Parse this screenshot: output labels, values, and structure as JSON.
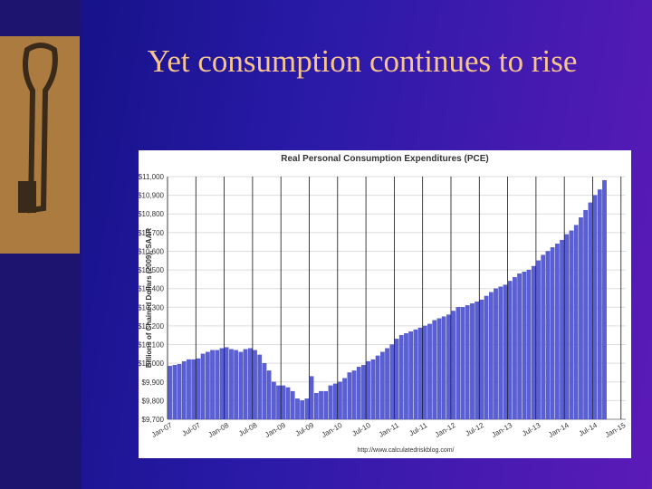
{
  "slide_title": "Yet consumption continues to rise",
  "chart_data": {
    "type": "bar",
    "title": "Real Personal Consumption Expenditures (PCE)",
    "y_label": "Billions of Chained Dollars (2009), SAAR",
    "source": "http://www.calculatedriskblog.com/",
    "color": "#5a5fd6",
    "categories": [
      "Jan-07",
      null,
      null,
      null,
      null,
      null,
      "Jul-07",
      null,
      null,
      null,
      null,
      null,
      "Jan-08",
      null,
      null,
      null,
      null,
      null,
      "Jul-08",
      null,
      null,
      null,
      null,
      null,
      "Jan-09",
      null,
      null,
      null,
      null,
      null,
      "Jul-09",
      null,
      null,
      null,
      null,
      null,
      "Jan-10",
      null,
      null,
      null,
      null,
      null,
      "Jul-10",
      null,
      null,
      null,
      null,
      null,
      "Jan-11",
      null,
      null,
      null,
      null,
      null,
      "Jul-11",
      null,
      null,
      null,
      null,
      null,
      "Jan-12",
      null,
      null,
      null,
      null,
      null,
      "Jul-12",
      null,
      null,
      null,
      null,
      null,
      "Jan-13",
      null,
      null,
      null,
      null,
      null,
      "Jul-13",
      null,
      null,
      null,
      null,
      null,
      "Jan-14",
      null,
      null,
      null,
      null,
      null,
      "Jul-14",
      null,
      null,
      null,
      null,
      null,
      "Jan-15"
    ],
    "values": [
      9985,
      9990,
      9995,
      10010,
      10020,
      10020,
      10025,
      10050,
      10060,
      10070,
      10070,
      10080,
      10085,
      10075,
      10070,
      10060,
      10075,
      10080,
      10070,
      10045,
      10000,
      9960,
      9900,
      9880,
      9880,
      9870,
      9850,
      9810,
      9800,
      9810,
      9930,
      9840,
      9850,
      9850,
      9880,
      9890,
      9900,
      9920,
      9950,
      9960,
      9980,
      9990,
      10010,
      10020,
      10040,
      10060,
      10080,
      10100,
      10130,
      10150,
      10160,
      10170,
      10180,
      10190,
      10200,
      10210,
      10230,
      10240,
      10250,
      10260,
      10280,
      10300,
      10300,
      10310,
      10320,
      10330,
      10340,
      10360,
      10380,
      10400,
      10410,
      10420,
      10440,
      10460,
      10480,
      10490,
      10500,
      10520,
      10550,
      10580,
      10600,
      10620,
      10640,
      10660,
      10690,
      10710,
      10740,
      10780,
      10820,
      10860,
      10900,
      10930,
      10980,
      null,
      null,
      null,
      null
    ],
    "ylim": [
      9700,
      11000
    ],
    "yticks": [
      {
        "value": 9700,
        "label": "$9,700"
      },
      {
        "value": 9800,
        "label": "$9,800"
      },
      {
        "value": 9900,
        "label": "$9,900"
      },
      {
        "value": 10000,
        "label": "$10,000"
      },
      {
        "value": 10100,
        "label": "$10,100"
      },
      {
        "value": 10200,
        "label": "$10,200"
      },
      {
        "value": 10300,
        "label": "$10,300"
      },
      {
        "value": 10400,
        "label": "$10,400"
      },
      {
        "value": 10500,
        "label": "$10,500"
      },
      {
        "value": 10600,
        "label": "$10,600"
      },
      {
        "value": 10700,
        "label": "$10,700"
      },
      {
        "value": 10800,
        "label": "$10,800"
      },
      {
        "value": 10900,
        "label": "$10,900"
      },
      {
        "value": 11000,
        "label": "$11,000"
      }
    ],
    "grid": true
  }
}
